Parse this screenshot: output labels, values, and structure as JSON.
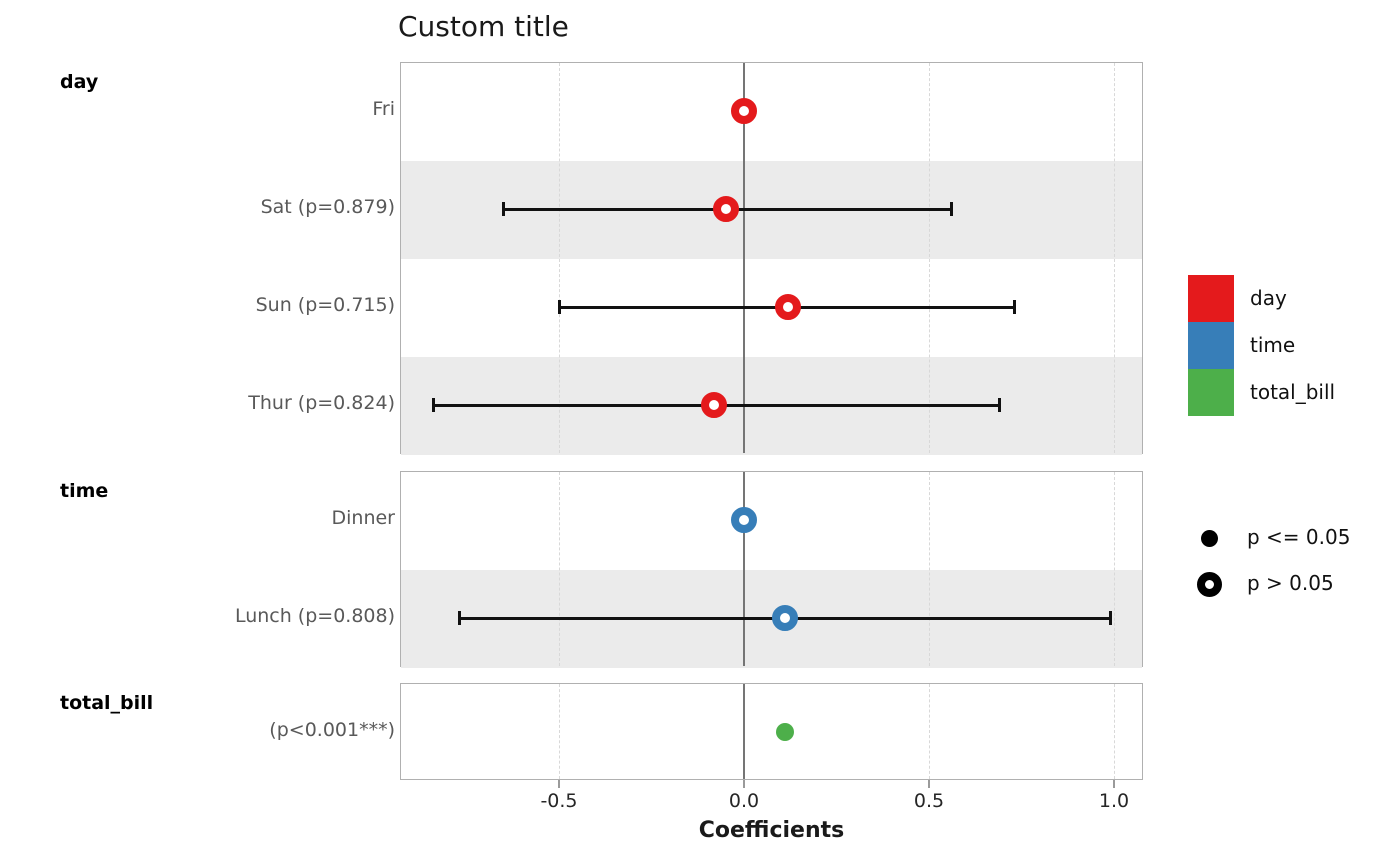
{
  "chart_data": {
    "type": "scatter",
    "subtype": "forest-coefficient-plot",
    "title": "Custom title",
    "xlabel": "Coefficients",
    "xlim": [
      -0.93,
      1.09
    ],
    "xticks": [
      -0.5,
      0.0,
      0.5,
      1.0
    ],
    "xtick_labels": [
      "-0.5",
      "0.0",
      "0.5",
      "1.0"
    ],
    "zero_reference_line": 0.0,
    "grid": "vertical dashed at ticks, solid gray line at 0",
    "legend_position": "right",
    "panels": [
      {
        "name": "day",
        "color": "#e41a1c",
        "rows": [
          {
            "label": "Fri",
            "estimate": 0.0,
            "ci_low": null,
            "ci_high": null,
            "p_text": null,
            "significant": false
          },
          {
            "label": "Sat (p=0.879)",
            "estimate": -0.05,
            "ci_low": -0.65,
            "ci_high": 0.56,
            "p_text": "p=0.879",
            "significant": false
          },
          {
            "label": "Sun (p=0.715)",
            "estimate": 0.12,
            "ci_low": -0.5,
            "ci_high": 0.73,
            "p_text": "p=0.715",
            "significant": false
          },
          {
            "label": "Thur (p=0.824)",
            "estimate": -0.08,
            "ci_low": -0.84,
            "ci_high": 0.69,
            "p_text": "p=0.824",
            "significant": false
          }
        ]
      },
      {
        "name": "time",
        "color": "#377eb8",
        "rows": [
          {
            "label": "Dinner",
            "estimate": 0.0,
            "ci_low": null,
            "ci_high": null,
            "p_text": null,
            "significant": false
          },
          {
            "label": "Lunch (p=0.808)",
            "estimate": 0.11,
            "ci_low": -0.77,
            "ci_high": 0.99,
            "p_text": "p=0.808",
            "significant": false
          }
        ]
      },
      {
        "name": "total_bill",
        "color": "#4daf4a",
        "rows": [
          {
            "label": "(p<0.001***)",
            "estimate": 0.11,
            "ci_low": null,
            "ci_high": null,
            "p_text": "p<0.001***",
            "significant": true
          }
        ]
      }
    ],
    "legend": {
      "color_entries": [
        {
          "label": "day",
          "color": "#e41a1c"
        },
        {
          "label": "time",
          "color": "#377eb8"
        },
        {
          "label": "total_bill",
          "color": "#4daf4a"
        }
      ],
      "shape_entries": [
        {
          "label": "p <= 0.05",
          "marker": "filled-circle"
        },
        {
          "label": "p > 0.05",
          "marker": "open-circle"
        }
      ]
    },
    "styles": {
      "band_color": "#ebebeb",
      "panel_border_color": "#b0b0b0",
      "grid_color": "#d8d8d8",
      "zero_line_color": "#757575",
      "errorbar_color": "#111111",
      "row_label_color": "#595959",
      "tick_label_color": "#262626"
    }
  }
}
